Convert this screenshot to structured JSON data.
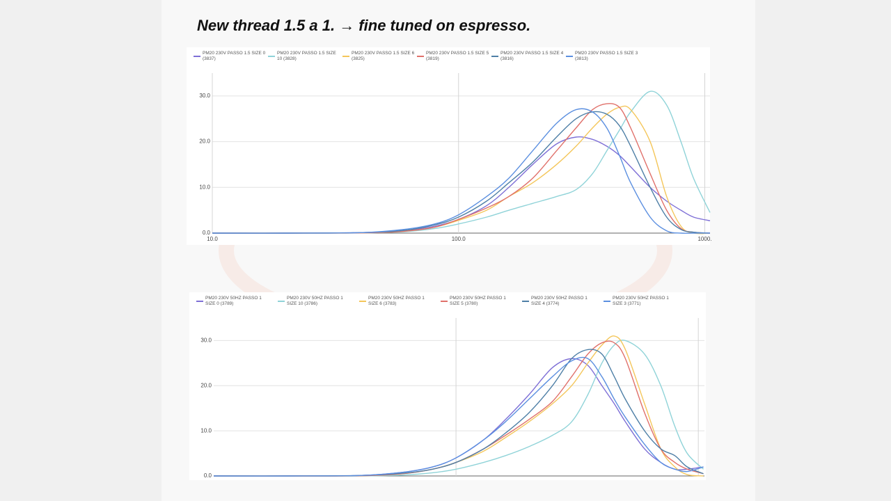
{
  "title": "New thread 1.5 a 1. → fine tuned on espresso.",
  "chart_data": [
    {
      "type": "line",
      "log_x": true,
      "grid": true,
      "legend": "top-left",
      "show_xtick_labels": true,
      "x": [
        10,
        20,
        40,
        60,
        80,
        100,
        130,
        160,
        200,
        250,
        300,
        350,
        400,
        450,
        500,
        600,
        700,
        800,
        900,
        1050
      ],
      "xlim": [
        10,
        1050
      ],
      "xticks": [
        {
          "value": 10,
          "label": "10.0"
        },
        {
          "value": 100,
          "label": "100.0"
        },
        {
          "value": 1000,
          "label": "1000."
        }
      ],
      "ylim": [
        0,
        35
      ],
      "yticks": [
        {
          "value": 0,
          "label": "0.0"
        },
        {
          "value": 10,
          "label": "10.0"
        },
        {
          "value": 20,
          "label": "20.0"
        },
        {
          "value": 30,
          "label": "30.0"
        }
      ],
      "series": [
        {
          "name": "PM20 230V PASSO 1.5 SIZE 0 (3837)",
          "color": "#7e6fd6",
          "values": [
            0,
            0,
            0.1,
            0.5,
            1.5,
            3,
            6,
            10,
            15,
            19.5,
            21,
            20.5,
            19,
            17,
            14.5,
            10,
            7,
            5,
            3.5,
            2.7
          ]
        },
        {
          "name": "PM20 230V PASSO 1.5 SIZE 10 (3828)",
          "color": "#8fd3d8",
          "values": [
            0,
            0,
            0.05,
            0.3,
            1,
            2,
            3.5,
            5,
            6.5,
            8,
            9.5,
            13,
            18,
            22.5,
            26.5,
            31,
            28,
            20,
            12,
            4.5
          ]
        },
        {
          "name": "PM20 230V PASSO 1.5 SIZE 6 (3825)",
          "color": "#f4c65a",
          "values": [
            0,
            0,
            0.05,
            0.4,
            1.3,
            2.8,
            5,
            8,
            11,
            15,
            19,
            23,
            26,
            27.5,
            27,
            20,
            8,
            1.5,
            0,
            0
          ]
        },
        {
          "name": "PM20 230V PASSO 1.5 SIZE 5 (3819)",
          "color": "#e0706a",
          "values": [
            0,
            0,
            0.05,
            0.4,
            1.3,
            3,
            5.5,
            8,
            12,
            18,
            23,
            27,
            28.3,
            27.5,
            23,
            13,
            5,
            1,
            0.2,
            0
          ]
        },
        {
          "name": "PM20 230V PASSO 1.5 SIZE 4 (3816)",
          "color": "#4e7fa6",
          "values": [
            0,
            0,
            0.1,
            0.6,
            1.8,
            3.5,
            7,
            11,
            15.5,
            21,
            25,
            26.5,
            26,
            23.5,
            19,
            10,
            3.5,
            0.8,
            0.2,
            0
          ]
        },
        {
          "name": "PM20 230V PASSO 1.5 SIZE 3 (3813)",
          "color": "#5b8fe0",
          "values": [
            0,
            0,
            0.1,
            0.8,
            2,
            4,
            8,
            12,
            18,
            24,
            27,
            26.5,
            23,
            17,
            11,
            3.5,
            0.5,
            0,
            0,
            0
          ]
        }
      ]
    },
    {
      "type": "line",
      "log_x": true,
      "grid": true,
      "legend": "top-left",
      "show_xtick_labels": false,
      "x": [
        10,
        20,
        40,
        60,
        80,
        100,
        130,
        160,
        200,
        250,
        300,
        350,
        400,
        450,
        500,
        600,
        700,
        800,
        900,
        1050
      ],
      "xlim": [
        10,
        1060
      ],
      "xticks": [
        100,
        1000
      ],
      "ylim": [
        0,
        35
      ],
      "yticks": [
        {
          "value": 0,
          "label": "0.0"
        },
        {
          "value": 10,
          "label": "10.0"
        },
        {
          "value": 20,
          "label": "20.0"
        },
        {
          "value": 30,
          "label": "30.0"
        }
      ],
      "series": [
        {
          "name": "PM20 230V 50HZ PASSO 1 SIZE 0 (3789)",
          "color": "#7e6fd6",
          "values": [
            0,
            0,
            0.1,
            0.8,
            2,
            4,
            8,
            12.5,
            18,
            24,
            26,
            24.5,
            20,
            16,
            12,
            6,
            3,
            1.5,
            1.5,
            2
          ]
        },
        {
          "name": "PM20 230V 50HZ PASSO 1 SIZE 10 (3786)",
          "color": "#8fd3d8",
          "values": [
            0,
            0,
            0,
            0.2,
            0.7,
            1.5,
            3,
            4.5,
            6.5,
            9,
            12,
            18,
            25,
            29,
            30,
            27,
            20,
            11,
            5,
            1.5
          ]
        },
        {
          "name": "PM20 230V 50HZ PASSO 1 SIZE 6 (3783)",
          "color": "#f4c65a",
          "values": [
            0,
            0,
            0.05,
            0.5,
            1.5,
            3,
            5.5,
            8.5,
            12,
            16,
            20,
            25,
            29,
            31,
            28,
            16,
            6,
            2,
            0.3,
            0
          ]
        },
        {
          "name": "PM20 230V 50HZ PASSO 1 SIZE 5 (3780)",
          "color": "#e0706a",
          "values": [
            0,
            0,
            0.05,
            0.5,
            1.5,
            3,
            6,
            9,
            12.5,
            16.5,
            22,
            27,
            29.5,
            29.5,
            26,
            14,
            6,
            3,
            1.5,
            0.5
          ]
        },
        {
          "name": "PM20 230V 50HZ PASSO 1 SIZE 4 (3774)",
          "color": "#4e7fa6",
          "values": [
            0,
            0,
            0.1,
            0.6,
            1.5,
            3,
            6,
            9.5,
            14,
            20,
            26,
            28,
            27,
            22,
            17,
            10,
            6,
            4.5,
            2,
            0.5
          ]
        },
        {
          "name": "PM20 230V 50HZ PASSO 1 SIZE 3 (3771)",
          "color": "#5b8fe0",
          "values": [
            0,
            0,
            0.1,
            0.8,
            2,
            4,
            8,
            12,
            17,
            22,
            25.5,
            26,
            22,
            17,
            13,
            7,
            3,
            1.5,
            1,
            2
          ]
        }
      ]
    }
  ]
}
